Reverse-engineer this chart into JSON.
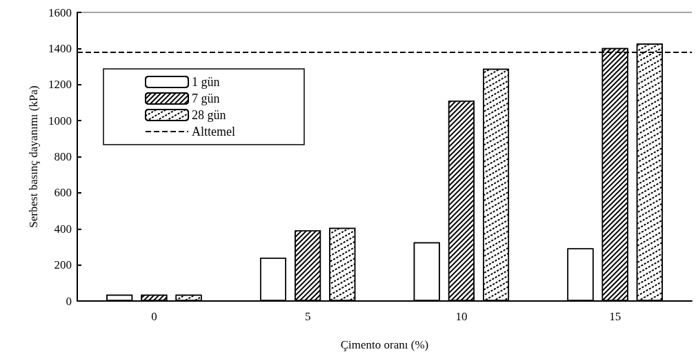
{
  "chart_data": {
    "type": "bar",
    "xlabel": "Çimento oranı (%)",
    "ylabel": "Serbest basınç dayanımı (kPa)",
    "categories": [
      "0",
      "5",
      "10",
      "15"
    ],
    "series": [
      {
        "name": "1 gün",
        "color": "#ffffff",
        "values": [
          35,
          241,
          326,
          292
        ]
      },
      {
        "name": "7 gün",
        "color": "#ffffff",
        "values": [
          35,
          391,
          1111,
          1402
        ]
      },
      {
        "name": "28 gün",
        "color": "#ffffff",
        "values": [
          35,
          406,
          1288,
          1427
        ]
      }
    ],
    "ylim": [
      0,
      1600
    ],
    "yticks": [
      0,
      200,
      400,
      600,
      800,
      1000,
      1200,
      1400,
      1600
    ],
    "ref_lines": [
      {
        "axis": "y",
        "value": 1380,
        "label": "Alttemel",
        "color": "#000000",
        "line_style": "dashed"
      }
    ],
    "grid": false,
    "legend": "top left"
  }
}
